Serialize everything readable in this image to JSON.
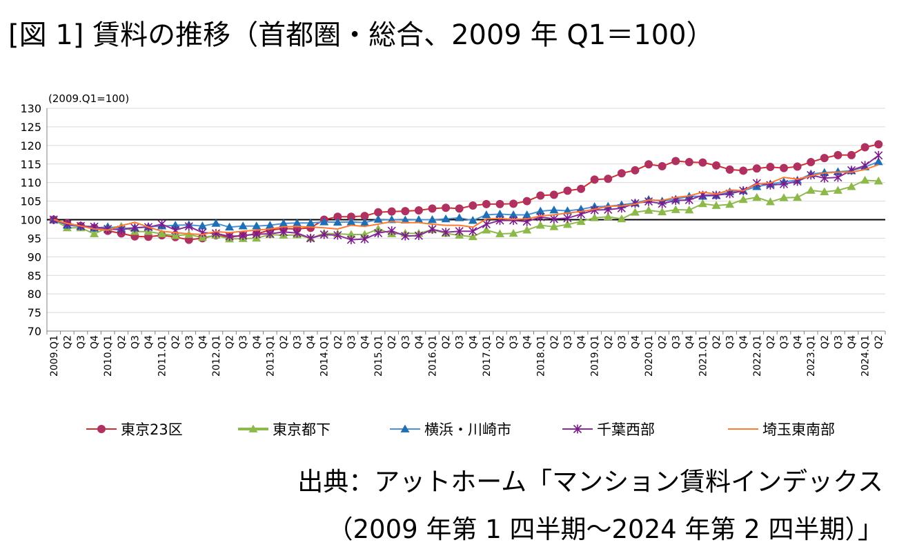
{
  "title": "[図 1] 賃料の推移（首都圏・総合、2009 年 Q1＝100）",
  "source": {
    "line1": "出典：アットホーム「マンション賃料インデックス",
    "line2": "（2009 年第 1 四半期～2024 年第 2 四半期）」"
  },
  "chart_data": {
    "type": "line",
    "unit_label": "(2009.Q1=100)",
    "ylim": [
      70,
      130
    ],
    "y_ticks": [
      70,
      75,
      80,
      85,
      90,
      95,
      100,
      105,
      110,
      115,
      120,
      125,
      130
    ],
    "reference_line": 100,
    "grid": "horizontal",
    "legend_position": "bottom",
    "x_labels": [
      "2009.Q1",
      "Q2",
      "Q3",
      "Q4",
      "2010.Q1",
      "Q2",
      "Q3",
      "Q4",
      "2011.Q1",
      "Q2",
      "Q3",
      "Q4",
      "2012.Q1",
      "Q2",
      "Q3",
      "Q4",
      "2013.Q1",
      "Q2",
      "Q3",
      "Q4",
      "2014.Q1",
      "Q2",
      "Q3",
      "Q4",
      "2015.Q1",
      "Q2",
      "Q3",
      "Q4",
      "2016.Q1",
      "Q2",
      "Q3",
      "Q4",
      "2017.Q1",
      "Q2",
      "Q3",
      "Q4",
      "2018.Q1",
      "Q2",
      "Q3",
      "Q4",
      "2019.Q1",
      "Q2",
      "Q3",
      "Q4",
      "2020.Q1",
      "Q2",
      "Q3",
      "Q4",
      "2021.Q1",
      "Q2",
      "Q3",
      "Q4",
      "2022.Q1",
      "Q2",
      "Q3",
      "Q4",
      "2023.Q1",
      "Q2",
      "Q3",
      "Q4",
      "2024.Q1",
      "Q2"
    ],
    "series": [
      {
        "name": "東京23区",
        "color": "#b03060",
        "line_color": "#d42a2a",
        "marker": "circle",
        "values": [
          100,
          99,
          98.3,
          97.8,
          97,
          96.3,
          95.5,
          95.4,
          95.8,
          95.3,
          94.6,
          95,
          95.8,
          95.3,
          95.7,
          96.2,
          97.2,
          97.6,
          97.5,
          97.8,
          100,
          100.8,
          100.8,
          101,
          102,
          102.2,
          102.3,
          102.5,
          103,
          103.2,
          103,
          103.8,
          104.2,
          104.2,
          104.3,
          105,
          106.5,
          106.7,
          107.8,
          108.3,
          110.8,
          111,
          112.5,
          113.3,
          114.9,
          114.4,
          115.8,
          115.5,
          115.4,
          114.6,
          113.5,
          113.2,
          113.8,
          114.2,
          113.9,
          114.3,
          115.5,
          116.6,
          117.4,
          117.4,
          119.5,
          120.3
        ]
      },
      {
        "name": "東京都下",
        "color": "#8db84a",
        "line_color": "#8db84a",
        "marker": "triangle",
        "values": [
          100,
          97.8,
          97.8,
          96.2,
          97.8,
          98.2,
          96.8,
          96.8,
          96.2,
          95.7,
          96,
          95.2,
          95.8,
          94.8,
          94.9,
          95,
          96,
          95.8,
          95.9,
          95,
          96.3,
          96.2,
          96,
          96,
          97.5,
          96.2,
          96.3,
          96.3,
          97.3,
          96.3,
          95.8,
          95.4,
          97.2,
          96.2,
          96.3,
          97.2,
          98.5,
          98.1,
          98.7,
          99.5,
          100.5,
          100.8,
          100.2,
          102,
          102.5,
          102.1,
          102.7,
          102.6,
          104.3,
          103.8,
          104.1,
          105.4,
          106,
          104.8,
          105.9,
          106,
          107.9,
          107.5,
          107.9,
          108.9,
          110.6,
          110.4
        ]
      },
      {
        "name": "横浜・川崎市",
        "color": "#1f6fb4",
        "line_color": "#4a90d8",
        "marker": "triangle",
        "values": [
          100,
          98.5,
          98.2,
          97.7,
          98.1,
          97.6,
          97.8,
          98.1,
          98.3,
          98.5,
          98.6,
          98.3,
          99,
          98,
          98.3,
          98.3,
          98.5,
          99,
          99.1,
          99.1,
          99.4,
          99.3,
          99.4,
          99.2,
          100.1,
          100,
          99.9,
          100,
          100,
          100.2,
          100.5,
          99.8,
          101.3,
          101.5,
          101.3,
          101.3,
          102.3,
          102.6,
          102.4,
          102.8,
          103.5,
          103.6,
          104,
          104.5,
          105.4,
          105,
          105.5,
          106.3,
          106.3,
          106.5,
          107.5,
          107.8,
          108.9,
          109.6,
          110.2,
          110.6,
          112.3,
          112.7,
          112.9,
          113.2,
          114.2,
          115.6
        ]
      },
      {
        "name": "千葉西部",
        "color": "#7a1a8a",
        "line_color": "#8a2a9a",
        "marker": "star",
        "values": [
          100,
          98.8,
          98.3,
          98.1,
          97.5,
          97.3,
          97.8,
          98,
          98.8,
          97.2,
          98.2,
          96.5,
          96.3,
          95.5,
          95.7,
          96.1,
          96.2,
          96.7,
          96.4,
          95,
          96,
          95.8,
          94.6,
          94.8,
          96.4,
          97,
          95.6,
          95.7,
          97.4,
          96.6,
          96.9,
          96.9,
          98.8,
          99.8,
          99.8,
          99.5,
          100.7,
          100.2,
          100.4,
          101.5,
          102.6,
          102.7,
          103.1,
          104.4,
          104.9,
          104.3,
          105.2,
          105.3,
          106.6,
          106.6,
          107,
          107.8,
          109.8,
          109.3,
          109.6,
          110.3,
          112,
          111.2,
          111.4,
          113.3,
          114.6,
          117.3
        ]
      },
      {
        "name": "埼玉東南部",
        "color": "#ff7a30",
        "line_color": "#ff7a30",
        "marker": "none",
        "values": [
          100,
          99,
          98.3,
          97.5,
          97.2,
          98.4,
          99.3,
          98,
          96.9,
          96.5,
          96.2,
          96,
          96.8,
          96.5,
          96.9,
          97.2,
          97.5,
          98.1,
          98.2,
          98,
          97.8,
          97.5,
          98.5,
          98.2,
          98.8,
          99.5,
          99.2,
          99.2,
          98.8,
          98.5,
          98.5,
          98,
          100.2,
          100.3,
          100.1,
          100.2,
          101,
          101.3,
          101.8,
          102.2,
          102.8,
          103.6,
          103.7,
          104.2,
          105.3,
          105.2,
          106,
          106.4,
          107.4,
          106.9,
          108,
          107.8,
          109.6,
          109.9,
          111.4,
          110.9,
          111.8,
          112.6,
          112.8,
          112.8,
          113.5,
          114.8
        ]
      }
    ]
  }
}
